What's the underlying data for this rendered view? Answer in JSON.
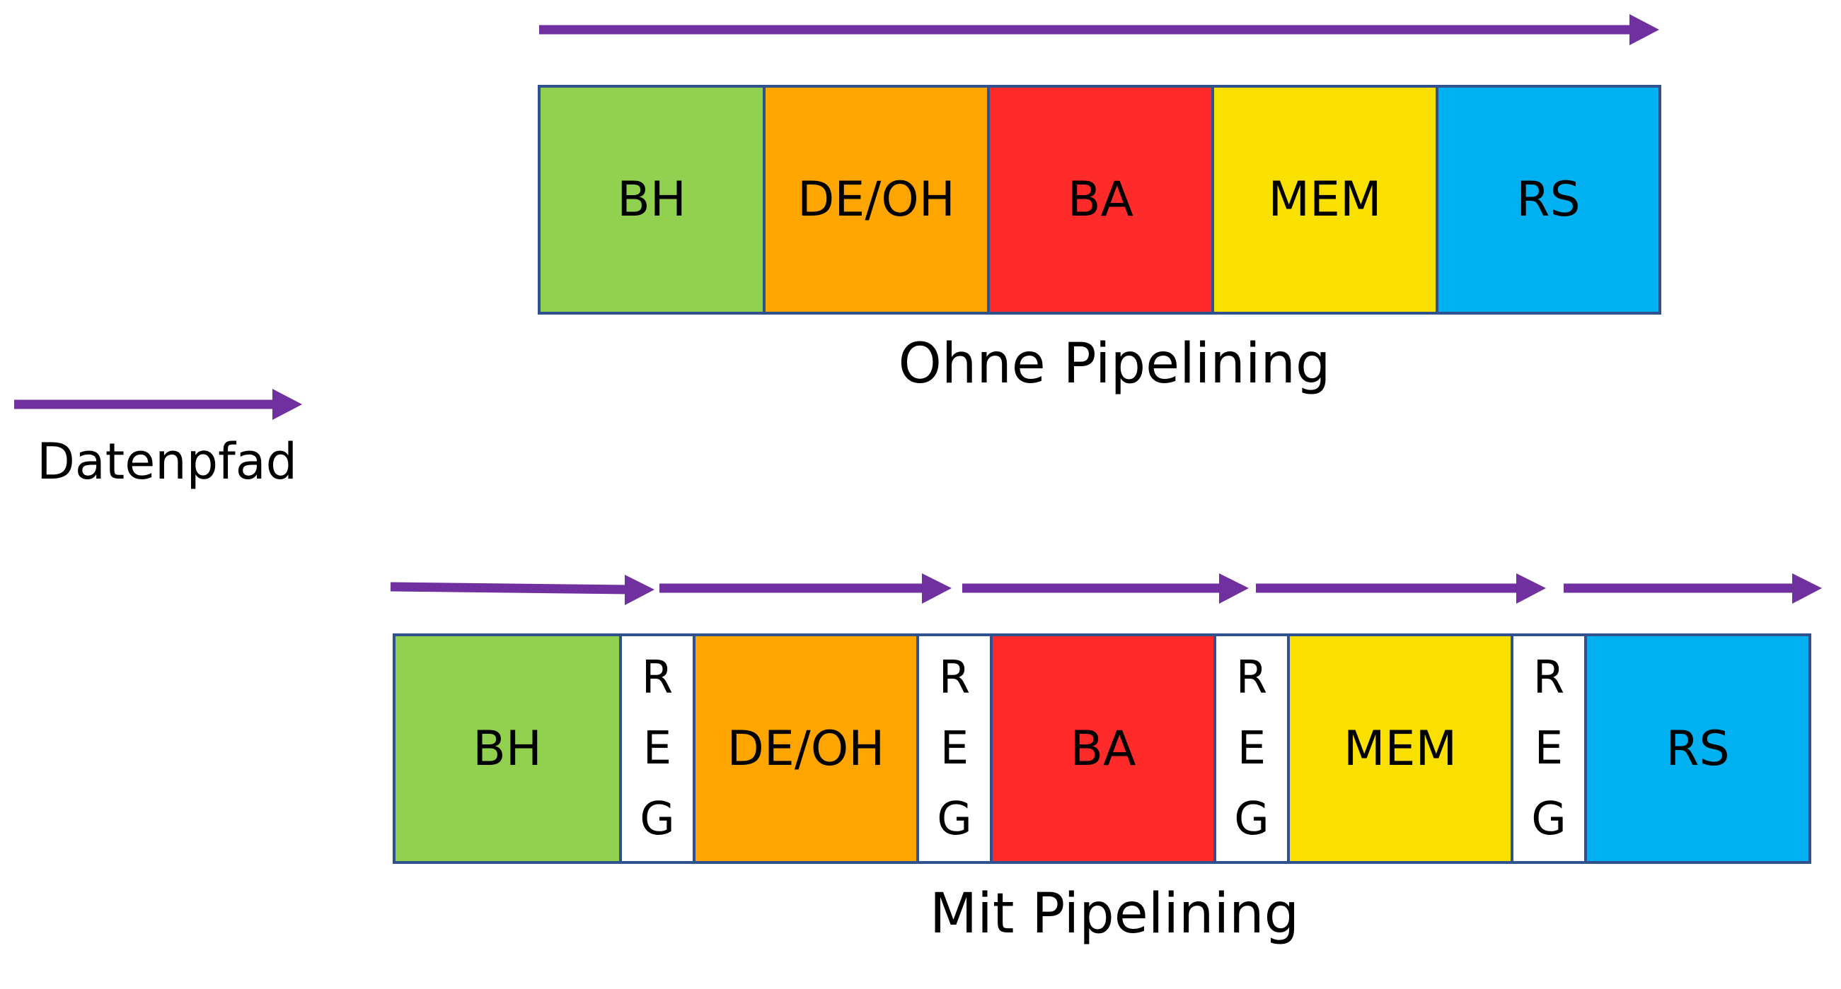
{
  "legend": {
    "label": "Datenpfad"
  },
  "without_pipelining": {
    "caption": "Ohne Pipelining",
    "stages": [
      {
        "label": "BH",
        "color": "#92d050"
      },
      {
        "label": "DE/OH",
        "color": "#ffa500"
      },
      {
        "label": "BA",
        "color": "#ff2a2a"
      },
      {
        "label": "MEM",
        "color": "#f9e000"
      },
      {
        "label": "RS",
        "color": "#00b0f0"
      }
    ]
  },
  "with_pipelining": {
    "caption": "Mit Pipelining",
    "stages": [
      {
        "label": "BH",
        "color": "#92d050"
      },
      {
        "label": "DE/OH",
        "color": "#ffa500"
      },
      {
        "label": "BA",
        "color": "#ff2a2a"
      },
      {
        "label": "MEM",
        "color": "#f9e000"
      },
      {
        "label": "RS",
        "color": "#00b0f0"
      }
    ],
    "register_letters": [
      "R",
      "E",
      "G"
    ]
  },
  "colors": {
    "arrow": "#7030a0",
    "border": "#2f528f"
  }
}
